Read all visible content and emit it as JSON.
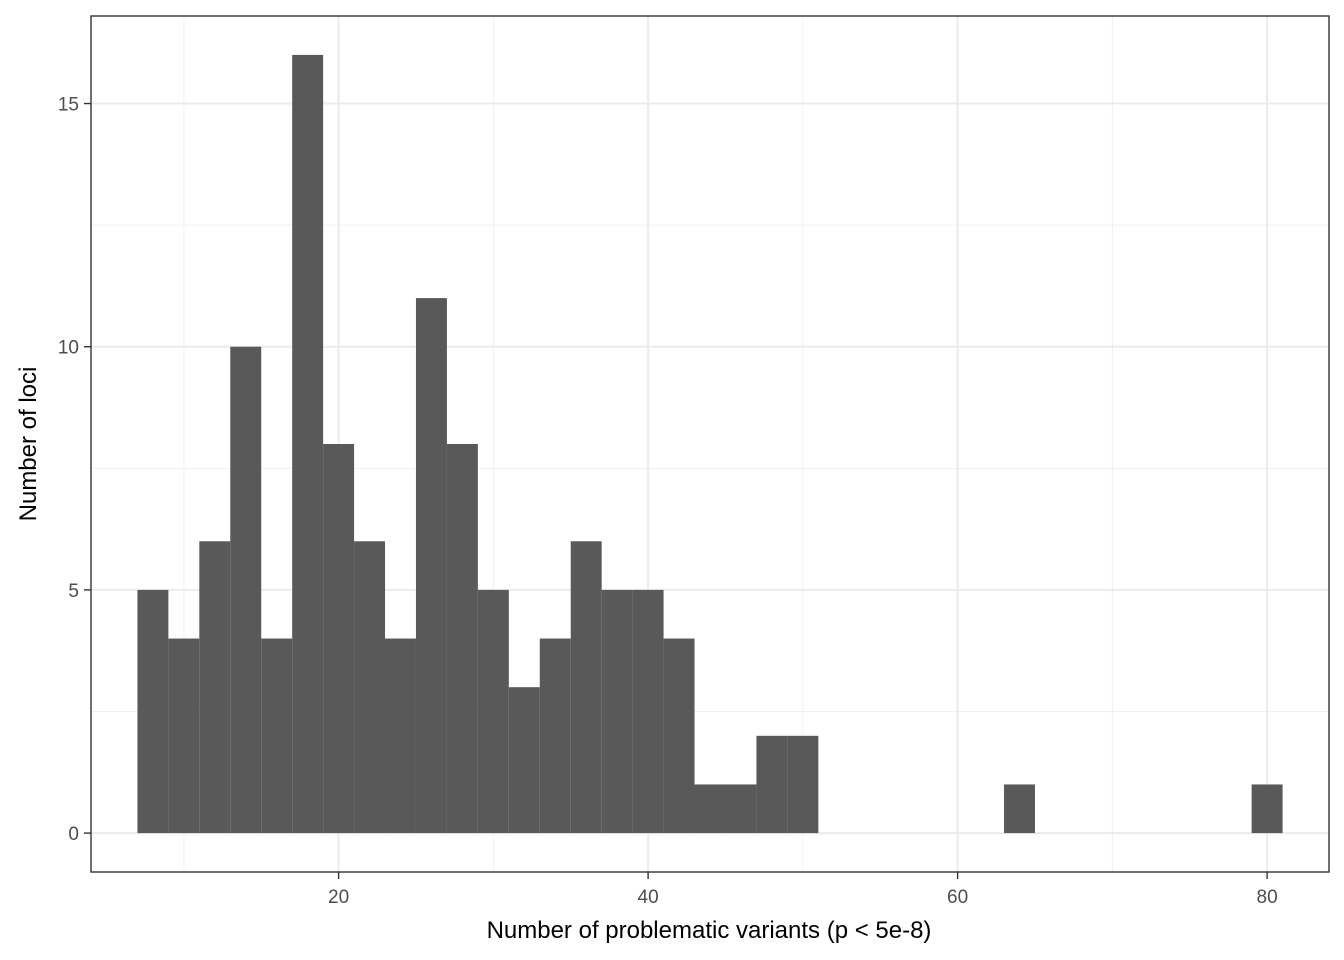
{
  "chart_data": {
    "type": "bar",
    "subtype": "histogram",
    "title": "",
    "xlabel": "Number of problematic variants (p < 5e-8)",
    "ylabel": "Number of loci",
    "xlim": [
      4,
      84
    ],
    "ylim": [
      -0.8,
      16.8
    ],
    "x_ticks": [
      20,
      40,
      60,
      80
    ],
    "y_ticks": [
      0,
      5,
      10,
      15
    ],
    "x_tick_labels": [
      "20",
      "40",
      "60",
      "80"
    ],
    "y_tick_labels": [
      "0",
      "5",
      "10",
      "15"
    ],
    "grid": true,
    "legend": "none",
    "bar_color": "#595959",
    "bins": [
      {
        "x0": 7,
        "x1": 9,
        "count": 5
      },
      {
        "x0": 9,
        "x1": 11,
        "count": 4
      },
      {
        "x0": 11,
        "x1": 13,
        "count": 6
      },
      {
        "x0": 13,
        "x1": 15,
        "count": 10
      },
      {
        "x0": 15,
        "x1": 17,
        "count": 4
      },
      {
        "x0": 17,
        "x1": 19,
        "count": 16
      },
      {
        "x0": 19,
        "x1": 21,
        "count": 8
      },
      {
        "x0": 21,
        "x1": 23,
        "count": 6
      },
      {
        "x0": 23,
        "x1": 25,
        "count": 4
      },
      {
        "x0": 25,
        "x1": 27,
        "count": 11
      },
      {
        "x0": 27,
        "x1": 29,
        "count": 8
      },
      {
        "x0": 29,
        "x1": 31,
        "count": 5
      },
      {
        "x0": 31,
        "x1": 33,
        "count": 3
      },
      {
        "x0": 33,
        "x1": 35,
        "count": 4
      },
      {
        "x0": 35,
        "x1": 37,
        "count": 6
      },
      {
        "x0": 37,
        "x1": 39,
        "count": 5
      },
      {
        "x0": 39,
        "x1": 41,
        "count": 5
      },
      {
        "x0": 41,
        "x1": 43,
        "count": 4
      },
      {
        "x0": 43,
        "x1": 45,
        "count": 1
      },
      {
        "x0": 45,
        "x1": 47,
        "count": 1
      },
      {
        "x0": 47,
        "x1": 49,
        "count": 2
      },
      {
        "x0": 49,
        "x1": 51,
        "count": 2
      },
      {
        "x0": 63,
        "x1": 65,
        "count": 1
      },
      {
        "x0": 79,
        "x1": 81,
        "count": 1
      }
    ]
  }
}
